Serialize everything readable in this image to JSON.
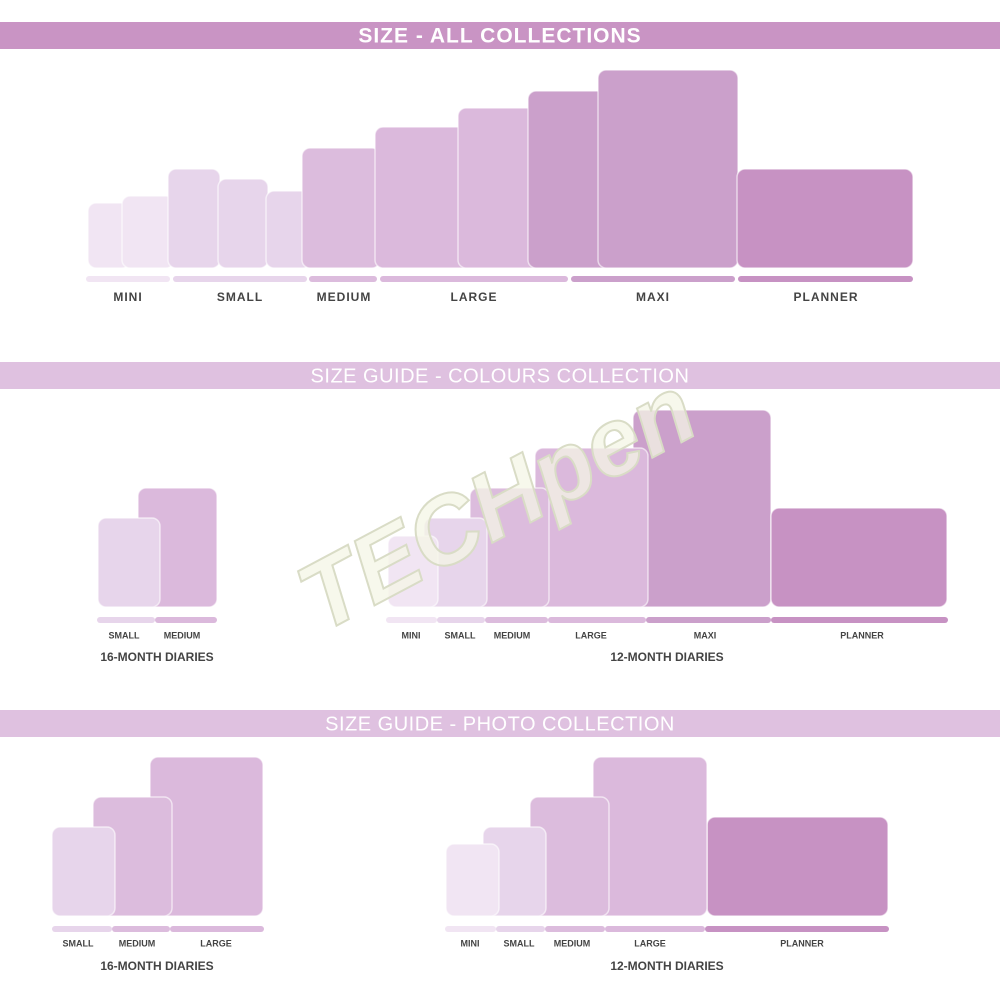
{
  "sections": [
    {
      "title": "SIZE - ALL COLLECTIONS",
      "sizes": [
        "MINI",
        "SMALL",
        "MEDIUM",
        "LARGE",
        "MAXI",
        "PLANNER"
      ]
    },
    {
      "title": "SIZE GUIDE - COLOURS COLLECTION",
      "groups": [
        {
          "sizes": [
            "SMALL",
            "MEDIUM"
          ],
          "label": "16-MONTH DIARIES"
        },
        {
          "sizes": [
            "MINI",
            "SMALL",
            "MEDIUM",
            "LARGE",
            "MAXI",
            "PLANNER"
          ],
          "label": "12-MONTH DIARIES"
        }
      ]
    },
    {
      "title": "SIZE GUIDE - PHOTO COLLECTION",
      "groups": [
        {
          "sizes": [
            "SMALL",
            "MEDIUM",
            "LARGE"
          ],
          "label": "16-MONTH DIARIES"
        },
        {
          "sizes": [
            "MINI",
            "SMALL",
            "MEDIUM",
            "LARGE",
            "PLANNER"
          ],
          "label": "12-MONTH DIARIES"
        }
      ]
    }
  ],
  "watermark": "TECHpen"
}
